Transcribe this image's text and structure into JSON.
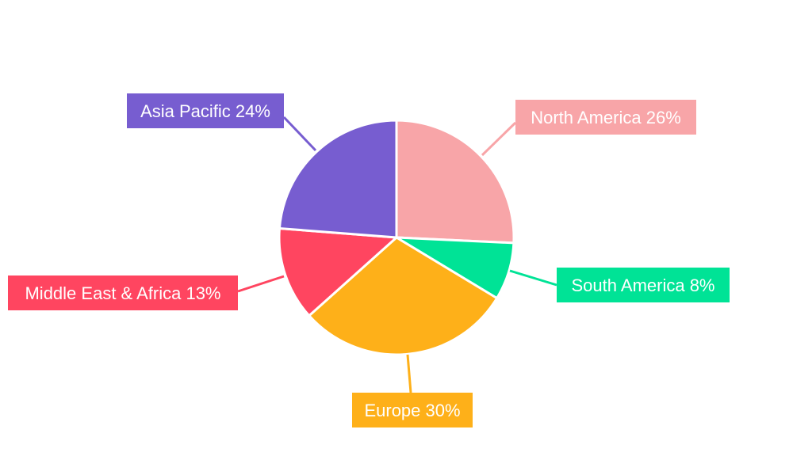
{
  "chart_data": {
    "type": "pie",
    "title": "",
    "start_angle": "12 o'clock, clockwise",
    "slices": [
      {
        "label": "North America",
        "value": 26,
        "display": "North America 26%",
        "color": "#F8A5A8"
      },
      {
        "label": "South America",
        "value": 8,
        "display": "South America 8%",
        "color": "#00E396"
      },
      {
        "label": "Europe",
        "value": 30,
        "display": "Europe 30%",
        "color": "#FEB019"
      },
      {
        "label": "Middle East & Africa",
        "value": 13,
        "display": "Middle East & Africa 13%",
        "color": "#FF4560"
      },
      {
        "label": "Asia Pacific",
        "value": 24,
        "display": "Asia Pacific 24%",
        "color": "#775DD0"
      }
    ],
    "legend": "none",
    "data_labels": "outside with leader lines"
  }
}
